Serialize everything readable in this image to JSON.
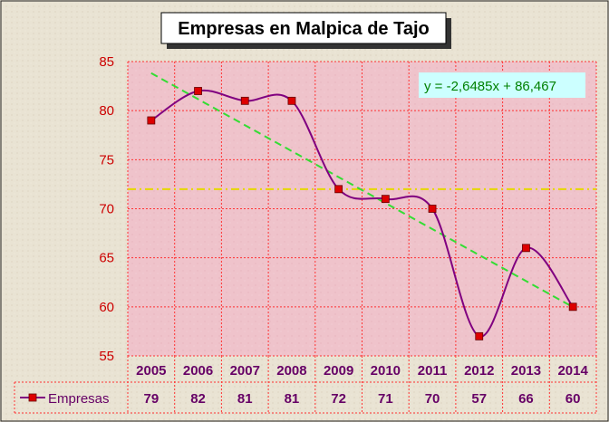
{
  "chart_data": {
    "type": "line",
    "title": "Empresas en Malpica de Tajo",
    "categories": [
      "2005",
      "2006",
      "2007",
      "2008",
      "2009",
      "2010",
      "2011",
      "2012",
      "2013",
      "2014"
    ],
    "series": [
      {
        "name": "Empresas",
        "values": [
          79,
          82,
          81,
          81,
          72,
          71,
          70,
          57,
          66,
          60
        ]
      }
    ],
    "ylim": [
      55,
      85
    ],
    "yticks": [
      55,
      60,
      65,
      70,
      75,
      80,
      85
    ],
    "trendline": {
      "type": "linear",
      "equation": "y = -2,6485x + 86,467",
      "slope": -2.6485,
      "intercept": 86.467
    },
    "mean_line": 72,
    "grid": true,
    "legend": "data-table",
    "colors": {
      "series": "#800080",
      "marker": "#dd0000",
      "trend": "#33dd33",
      "mean": "#e6d800",
      "plot_bg": "#efc3cb",
      "grid": "#ff3333",
      "axis_text": "#cc0000",
      "table_text": "#660066",
      "equation_bg": "#ccffff",
      "equation_text": "#008000"
    }
  }
}
